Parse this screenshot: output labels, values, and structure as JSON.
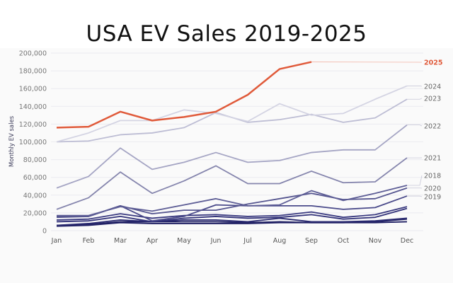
{
  "chart_data": {
    "type": "line",
    "title": "USA EV Sales 2019-2025",
    "xlabel": "",
    "ylabel": "Monthly EV sales",
    "ylim": [
      0,
      200000
    ],
    "yticks": [
      "0",
      "20,000",
      "40,000",
      "60,000",
      "80,000",
      "100,000",
      "120,000",
      "140,000",
      "160,000",
      "180,000",
      "200,000"
    ],
    "ytick_values": [
      0,
      20000,
      40000,
      60000,
      80000,
      100000,
      120000,
      140000,
      160000,
      180000,
      200000
    ],
    "categories": [
      "Jan",
      "Feb",
      "Mar",
      "Apr",
      "May",
      "Jun",
      "Jul",
      "Aug",
      "Sep",
      "Oct",
      "Nov",
      "Dec"
    ],
    "grid": true,
    "legend_placement": "right (direct line labels)",
    "highlight_color": "#e05a3a",
    "series": [
      {
        "name": "",
        "label": "",
        "color": "#232366",
        "values": [
          5000,
          6000,
          9000,
          8000,
          8000,
          8000,
          8000,
          9000,
          9000,
          9000,
          9000,
          10000
        ]
      },
      {
        "name": "",
        "label": "",
        "color": "#232366",
        "values": [
          6000,
          7000,
          10000,
          10000,
          10000,
          10000,
          9000,
          10000,
          9000,
          9000,
          10000,
          13000
        ]
      },
      {
        "name": "",
        "label": "",
        "color": "#2a2a70",
        "values": [
          6000,
          8000,
          12000,
          10000,
          12000,
          12000,
          10000,
          14000,
          10000,
          10000,
          11000,
          14000
        ]
      },
      {
        "name": "",
        "label": "",
        "color": "#33337a",
        "values": [
          10000,
          11000,
          16000,
          10000,
          14000,
          16000,
          14000,
          15000,
          18000,
          13000,
          15000,
          25000
        ]
      },
      {
        "name": "",
        "label": "",
        "color": "#3a3a80",
        "values": [
          12000,
          13000,
          19000,
          14000,
          17000,
          18000,
          16000,
          17000,
          21000,
          15000,
          18000,
          27000
        ]
      },
      {
        "name": "2019",
        "label": "2019",
        "color": "#4a4a8a",
        "values": [
          16000,
          16000,
          28000,
          11000,
          16000,
          29000,
          28000,
          28000,
          28000,
          24000,
          26000,
          39000
        ]
      },
      {
        "name": "2020",
        "label": "2020",
        "color": "#55558f",
        "values": [
          15000,
          16000,
          28000,
          19000,
          23000,
          23000,
          30000,
          36000,
          42000,
          35000,
          36000,
          48000
        ]
      },
      {
        "name": "2018",
        "label": "2018",
        "color": "#5e5e96",
        "values": [
          17000,
          17000,
          27000,
          22000,
          29000,
          36000,
          28000,
          29000,
          45000,
          34000,
          42000,
          51000
        ]
      },
      {
        "name": "2021",
        "label": "2021",
        "color": "#8585ad",
        "values": [
          24000,
          37000,
          66000,
          42000,
          56000,
          73000,
          53000,
          53000,
          67000,
          54000,
          55000,
          82000
        ]
      },
      {
        "name": "2022",
        "label": "2022",
        "color": "#a5a5c4",
        "values": [
          48000,
          61000,
          93000,
          69000,
          77000,
          88000,
          77000,
          79000,
          88000,
          91000,
          91000,
          119000
        ]
      },
      {
        "name": "2023",
        "label": "2023",
        "color": "#bdbdd4",
        "values": [
          100000,
          101000,
          108000,
          110000,
          116000,
          133000,
          122000,
          125000,
          131000,
          122000,
          127000,
          148000
        ]
      },
      {
        "name": "2024",
        "label": "2024",
        "color": "#d4d4e3",
        "values": [
          100000,
          110000,
          124000,
          124000,
          136000,
          132000,
          123000,
          143000,
          130000,
          132000,
          148000,
          163000
        ]
      },
      {
        "name": "2025",
        "label": "2025",
        "color": "#e05a3a",
        "highlight": true,
        "values": [
          116000,
          117000,
          134000,
          124000,
          128000,
          134000,
          153000,
          182000,
          190000
        ]
      }
    ]
  }
}
